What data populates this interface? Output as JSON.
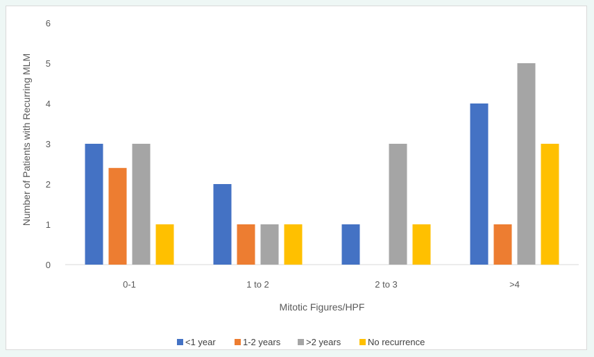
{
  "chart_data": {
    "type": "bar",
    "title": "",
    "xlabel": "Mitotic Figures/HPF",
    "ylabel": "Number of Patients with Recurring MLM",
    "categories": [
      "0-1",
      "1 to 2",
      "2 to 3",
      ">4"
    ],
    "yticks": [
      "0",
      "1",
      "2",
      "3",
      "4",
      "5",
      "6"
    ],
    "ylim": [
      0,
      6
    ],
    "grid": false,
    "legend_position": "bottom",
    "series": [
      {
        "name": "<1 year",
        "color": "#4472c4",
        "values": [
          3,
          2,
          1,
          4
        ]
      },
      {
        "name": "1-2 years",
        "color": "#ed7d31",
        "values": [
          2.4,
          1,
          0,
          1
        ]
      },
      {
        "name": ">2 years",
        "color": "#a5a5a5",
        "values": [
          3,
          1,
          3,
          5
        ]
      },
      {
        "name": "No recurrence",
        "color": "#ffc000",
        "values": [
          1,
          1,
          1,
          3
        ]
      }
    ]
  }
}
